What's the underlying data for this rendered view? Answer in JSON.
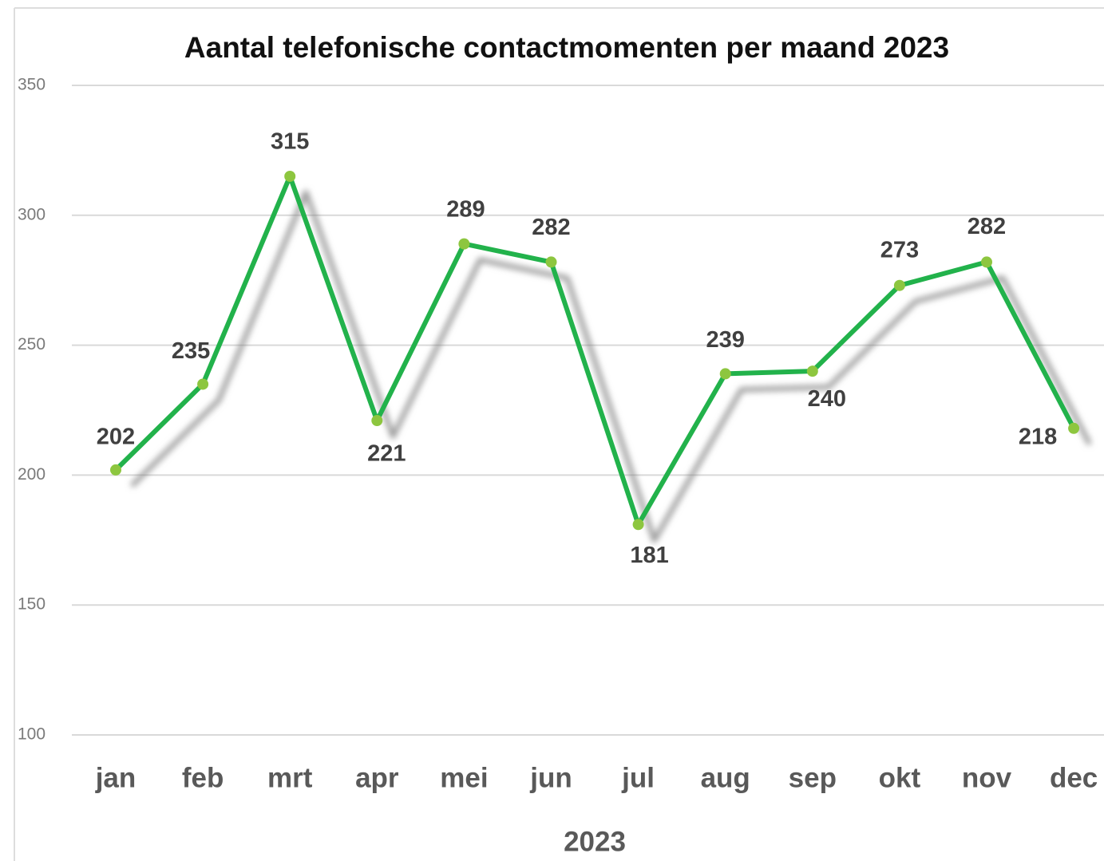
{
  "chart_data": {
    "type": "line",
    "title": "Aantal telefonische contactmomenten per maand 2023",
    "xlabel": "2023",
    "categories": [
      "jan",
      "feb",
      "mrt",
      "apr",
      "mei",
      "jun",
      "jul",
      "aug",
      "sep",
      "okt",
      "nov",
      "dec"
    ],
    "values": [
      202,
      235,
      315,
      221,
      289,
      282,
      181,
      239,
      240,
      273,
      282,
      218
    ],
    "color": "#22b24c",
    "marker_color": "#8dc63f",
    "ylim": [
      100,
      350
    ],
    "yticks": [
      100,
      150,
      200,
      250,
      300,
      350
    ],
    "grid": true
  }
}
